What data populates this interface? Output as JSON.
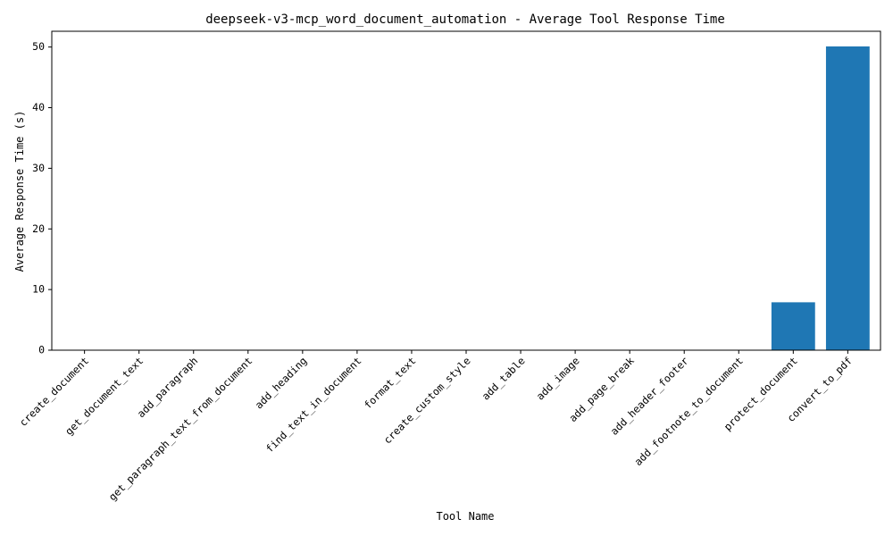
{
  "chart_data": {
    "type": "bar",
    "title": "deepseek-v3-mcp_word_document_automation - Average Tool Response Time",
    "xlabel": "Tool Name",
    "ylabel": "Average Response Time (s)",
    "categories": [
      "create_document",
      "get_document_text",
      "add_paragraph",
      "get_paragraph_text_from_document",
      "add_heading",
      "find_text_in_document",
      "format_text",
      "create_custom_style",
      "add_table",
      "add_image",
      "add_page_break",
      "add_header_footer",
      "add_footnote_to_document",
      "protect_document",
      "convert_to_pdf"
    ],
    "values": [
      0.02,
      0.01,
      0.01,
      0.01,
      0.01,
      0.01,
      0.01,
      0.01,
      0.01,
      0.01,
      0.01,
      0.01,
      0.01,
      7.9,
      50.1
    ],
    "ylim": [
      0,
      52.6
    ],
    "yticks": [
      0,
      10,
      20,
      30,
      40,
      50
    ],
    "bar_color": "#1f77b4",
    "grid": false,
    "legend": "none"
  }
}
